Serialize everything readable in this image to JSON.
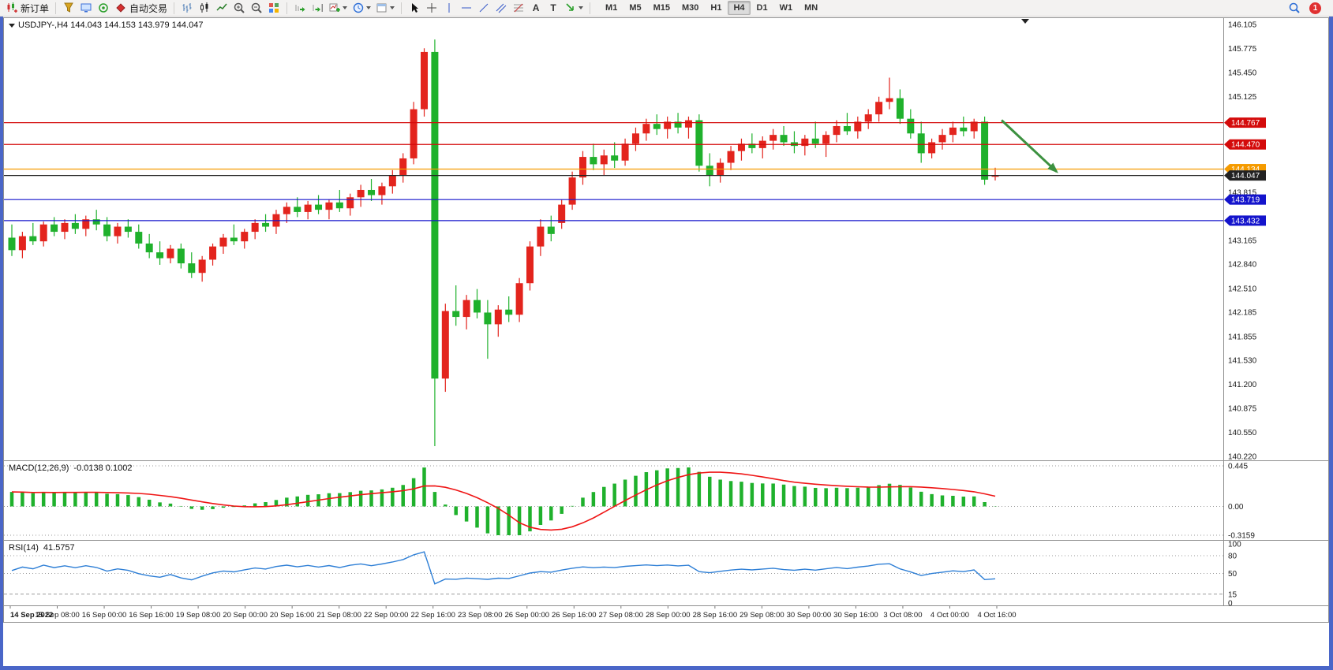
{
  "toolbar": {
    "new_order_label": "新订单",
    "autotrading_label": "自动交易",
    "text_tool_glyph": "A",
    "label_tool_glyph": "T",
    "timeframes": [
      "M1",
      "M5",
      "M15",
      "M30",
      "H1",
      "H4",
      "D1",
      "W1",
      "MN"
    ],
    "active_timeframe": "H4",
    "notification_badge": "1"
  },
  "chart_data": {
    "type": "candlestick",
    "symbol": "USDJPY-",
    "timeframe": "H4",
    "title": "USDJPY-,H4 144.043 144.153 143.979 144.047",
    "ohlc_current": {
      "open": 144.043,
      "high": 144.153,
      "low": 143.979,
      "close": 144.047
    },
    "colors": {
      "bull": "#e3241d",
      "bear": "#1fb12c",
      "background": "#ffffff",
      "axis_text": "#1a1a1a"
    },
    "price_axis": {
      "min": 140.22,
      "max": 146.105,
      "ticks": [
        146.105,
        145.775,
        145.45,
        145.125,
        143.815,
        143.165,
        142.84,
        142.51,
        142.185,
        141.855,
        141.53,
        141.2,
        140.875,
        140.55,
        140.22
      ]
    },
    "levels": [
      {
        "price": 144.767,
        "label": "144.767",
        "color": "#d40b0b",
        "type": "resistance"
      },
      {
        "price": 144.47,
        "label": "144.470",
        "color": "#d40b0b",
        "type": "resistance"
      },
      {
        "price": 144.134,
        "label": "144.134",
        "color": "#f59b00",
        "type": "pivot"
      },
      {
        "price": 144.047,
        "label": "144.047",
        "color": "#222222",
        "type": "current-price"
      },
      {
        "price": 143.719,
        "label": "143.719",
        "color": "#1414cc",
        "type": "support"
      },
      {
        "price": 143.432,
        "label": "143.432",
        "color": "#1414cc",
        "type": "support"
      }
    ],
    "trend_arrow": {
      "from_candle": 93.6,
      "from_price": 144.8,
      "to_candle": 98.8,
      "to_price": 144.1,
      "color": "#3c9140",
      "direction": "down-right"
    },
    "time_labels": [
      "14 Sep 2022",
      "15 Sep 08:00",
      "16 Sep 00:00",
      "16 Sep 16:00",
      "19 Sep 08:00",
      "20 Sep 00:00",
      "20 Sep 16:00",
      "21 Sep 08:00",
      "22 Sep 00:00",
      "22 Sep 16:00",
      "23 Sep 08:00",
      "26 Sep 00:00",
      "26 Sep 16:00",
      "27 Sep 08:00",
      "28 Sep 00:00",
      "28 Sep 16:00",
      "29 Sep 08:00",
      "30 Sep 00:00",
      "30 Sep 16:00",
      "3 Oct 08:00",
      "4 Oct 00:00",
      "4 Oct 16:00"
    ],
    "candles": [
      [
        143.2,
        143.38,
        142.95,
        143.03
      ],
      [
        143.03,
        143.28,
        142.92,
        143.22
      ],
      [
        143.22,
        143.4,
        143.1,
        143.15
      ],
      [
        143.15,
        143.42,
        143.08,
        143.38
      ],
      [
        143.38,
        143.48,
        143.22,
        143.28
      ],
      [
        143.28,
        143.45,
        143.18,
        143.4
      ],
      [
        143.4,
        143.52,
        143.25,
        143.32
      ],
      [
        143.32,
        143.5,
        143.22,
        143.45
      ],
      [
        143.45,
        143.58,
        143.3,
        143.38
      ],
      [
        143.38,
        143.48,
        143.15,
        143.22
      ],
      [
        143.22,
        143.4,
        143.12,
        143.35
      ],
      [
        143.35,
        143.45,
        143.2,
        143.28
      ],
      [
        143.28,
        143.38,
        143.05,
        143.12
      ],
      [
        143.12,
        143.25,
        142.92,
        143.0
      ],
      [
        143.0,
        143.15,
        142.83,
        142.92
      ],
      [
        142.92,
        143.1,
        142.85,
        143.05
      ],
      [
        143.05,
        143.12,
        142.78,
        142.85
      ],
      [
        142.85,
        143.0,
        142.65,
        142.72
      ],
      [
        142.72,
        142.95,
        142.6,
        142.9
      ],
      [
        142.9,
        143.12,
        142.82,
        143.08
      ],
      [
        143.08,
        143.25,
        142.98,
        143.2
      ],
      [
        143.2,
        143.38,
        143.1,
        143.15
      ],
      [
        143.15,
        143.32,
        143.05,
        143.28
      ],
      [
        143.28,
        143.45,
        143.18,
        143.4
      ],
      [
        143.4,
        143.52,
        143.28,
        143.35
      ],
      [
        143.35,
        143.58,
        143.25,
        143.52
      ],
      [
        143.52,
        143.68,
        143.4,
        143.62
      ],
      [
        143.62,
        143.75,
        143.48,
        143.55
      ],
      [
        143.55,
        143.7,
        143.45,
        143.65
      ],
      [
        143.65,
        143.78,
        143.52,
        143.58
      ],
      [
        143.58,
        143.72,
        143.45,
        143.68
      ],
      [
        143.68,
        143.85,
        143.55,
        143.6
      ],
      [
        143.6,
        143.8,
        143.5,
        143.75
      ],
      [
        143.75,
        143.92,
        143.62,
        143.85
      ],
      [
        143.85,
        144.0,
        143.7,
        143.78
      ],
      [
        143.78,
        143.95,
        143.65,
        143.9
      ],
      [
        143.9,
        144.12,
        143.8,
        144.05
      ],
      [
        144.05,
        144.35,
        143.95,
        144.28
      ],
      [
        144.28,
        145.05,
        144.2,
        144.95
      ],
      [
        144.95,
        145.78,
        144.85,
        145.73
      ],
      [
        145.73,
        145.9,
        140.36,
        141.28
      ],
      [
        141.28,
        142.3,
        141.1,
        142.2
      ],
      [
        142.2,
        142.55,
        142.0,
        142.12
      ],
      [
        142.12,
        142.42,
        141.95,
        142.35
      ],
      [
        142.35,
        142.5,
        142.1,
        142.18
      ],
      [
        142.18,
        142.35,
        141.55,
        142.02
      ],
      [
        142.02,
        142.28,
        141.85,
        142.22
      ],
      [
        142.22,
        142.4,
        142.05,
        142.15
      ],
      [
        142.15,
        142.65,
        142.05,
        142.58
      ],
      [
        142.58,
        143.15,
        142.48,
        143.08
      ],
      [
        143.08,
        143.45,
        142.95,
        143.35
      ],
      [
        143.35,
        143.5,
        143.15,
        143.25
      ],
      [
        143.4,
        143.72,
        143.32,
        143.65
      ],
      [
        143.65,
        144.1,
        143.58,
        144.02
      ],
      [
        144.02,
        144.38,
        143.92,
        144.3
      ],
      [
        144.3,
        144.48,
        144.12,
        144.2
      ],
      [
        144.2,
        144.4,
        144.05,
        144.32
      ],
      [
        144.32,
        144.5,
        144.15,
        144.25
      ],
      [
        144.25,
        144.55,
        144.18,
        144.48
      ],
      [
        144.48,
        144.7,
        144.38,
        144.62
      ],
      [
        144.62,
        144.82,
        144.52,
        144.75
      ],
      [
        144.75,
        144.88,
        144.6,
        144.68
      ],
      [
        144.68,
        144.85,
        144.55,
        144.78
      ],
      [
        144.78,
        144.9,
        144.62,
        144.7
      ],
      [
        144.7,
        144.85,
        144.55,
        144.8
      ],
      [
        144.8,
        144.88,
        144.1,
        144.18
      ],
      [
        144.18,
        144.35,
        143.9,
        144.05
      ],
      [
        144.05,
        144.28,
        143.95,
        144.22
      ],
      [
        144.22,
        144.45,
        144.12,
        144.38
      ],
      [
        144.38,
        144.55,
        144.25,
        144.48
      ],
      [
        144.48,
        144.62,
        144.35,
        144.42
      ],
      [
        144.42,
        144.58,
        144.28,
        144.52
      ],
      [
        144.52,
        144.68,
        144.4,
        144.6
      ],
      [
        144.6,
        144.72,
        144.45,
        144.5
      ],
      [
        144.5,
        144.65,
        144.35,
        144.45
      ],
      [
        144.45,
        144.6,
        144.32,
        144.55
      ],
      [
        144.55,
        144.78,
        144.42,
        144.48
      ],
      [
        144.48,
        144.65,
        144.3,
        144.6
      ],
      [
        144.6,
        144.8,
        144.5,
        144.72
      ],
      [
        144.72,
        144.9,
        144.6,
        144.65
      ],
      [
        144.65,
        144.85,
        144.55,
        144.78
      ],
      [
        144.78,
        144.95,
        144.68,
        144.88
      ],
      [
        144.88,
        145.12,
        144.78,
        145.05
      ],
      [
        145.05,
        145.38,
        144.95,
        145.1
      ],
      [
        145.1,
        145.22,
        144.75,
        144.82
      ],
      [
        144.82,
        144.95,
        144.55,
        144.62
      ],
      [
        144.62,
        144.78,
        144.22,
        144.35
      ],
      [
        144.35,
        144.55,
        144.28,
        144.5
      ],
      [
        144.5,
        144.68,
        144.4,
        144.6
      ],
      [
        144.6,
        144.78,
        144.5,
        144.7
      ],
      [
        144.7,
        144.85,
        144.58,
        144.65
      ],
      [
        144.65,
        144.82,
        144.55,
        144.78
      ],
      [
        144.78,
        144.85,
        143.92,
        143.99
      ],
      [
        144.043,
        144.153,
        143.979,
        144.047
      ]
    ],
    "macd": {
      "title": "MACD(12,26,9)",
      "current_values": "-0.0138 0.1002",
      "fast": 12,
      "slow": 26,
      "signal": 9,
      "ymin": -0.3159,
      "ymax": 0.445,
      "axis_ticks": [
        {
          "value": 0.445,
          "label": "0.445"
        },
        {
          "value": 0,
          "label": "0.00"
        },
        {
          "value": -0.3159,
          "label": "-0.3159"
        }
      ],
      "histogram_color": "#1fb12c",
      "signal_color": "#ef1515"
    },
    "rsi": {
      "title": "RSI(14)",
      "current_value": "41.5757",
      "period": 14,
      "axis_ticks": [
        {
          "value": 100,
          "label": "100"
        },
        {
          "value": 80,
          "label": "80"
        },
        {
          "value": 50,
          "label": "50"
        },
        {
          "value": 15,
          "label": "15"
        },
        {
          "value": 0,
          "label": "0"
        }
      ],
      "level_lines": [
        80,
        50,
        15
      ],
      "line_color": "#2e7fd6"
    }
  }
}
